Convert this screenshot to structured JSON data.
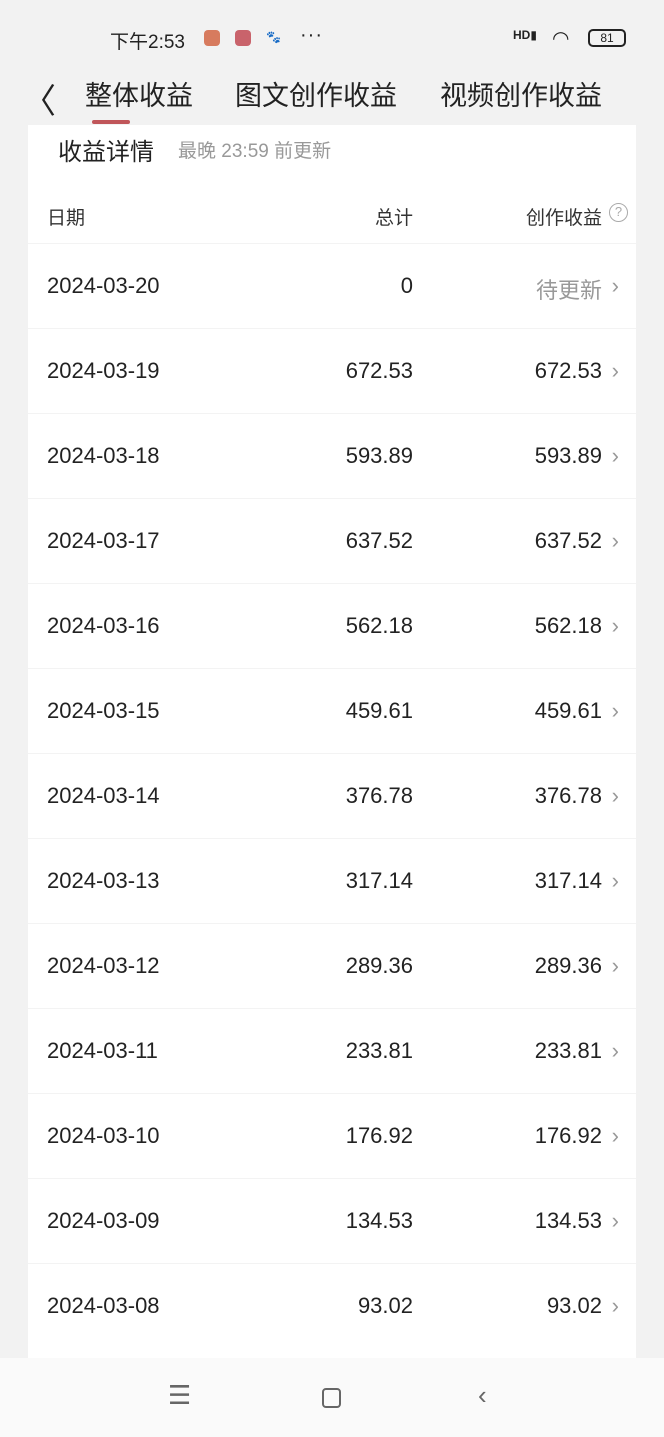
{
  "status_bar": {
    "time": "下午2:53",
    "more": "···",
    "signal": "HD",
    "battery": "81"
  },
  "nav": {
    "tabs": [
      {
        "label": "整体收益",
        "active": true
      },
      {
        "label": "图文创作收益"
      },
      {
        "label": "视频创作收益"
      }
    ],
    "accent": "#c0565a"
  },
  "card": {
    "title": "收益详情",
    "subtitle": "最晚 23:59 前更新"
  },
  "table": {
    "headers": {
      "date": "日期",
      "total": "总计",
      "creation": "创作收益"
    },
    "rows": [
      {
        "date": "2024-03-20",
        "total": "0",
        "creation": "待更新"
      },
      {
        "date": "2024-03-19",
        "total": "672.53",
        "creation": "672.53"
      },
      {
        "date": "2024-03-18",
        "total": "593.89",
        "creation": "593.89"
      },
      {
        "date": "2024-03-17",
        "total": "637.52",
        "creation": "637.52"
      },
      {
        "date": "2024-03-16",
        "total": "562.18",
        "creation": "562.18"
      },
      {
        "date": "2024-03-15",
        "total": "459.61",
        "creation": "459.61"
      },
      {
        "date": "2024-03-14",
        "total": "376.78",
        "creation": "376.78"
      },
      {
        "date": "2024-03-13",
        "total": "317.14",
        "creation": "317.14"
      },
      {
        "date": "2024-03-12",
        "total": "289.36",
        "creation": "289.36"
      },
      {
        "date": "2024-03-11",
        "total": "233.81",
        "creation": "233.81"
      },
      {
        "date": "2024-03-10",
        "total": "176.92",
        "creation": "176.92"
      },
      {
        "date": "2024-03-09",
        "total": "134.53",
        "creation": "134.53"
      },
      {
        "date": "2024-03-08",
        "total": "93.02",
        "creation": "93.02"
      }
    ]
  }
}
